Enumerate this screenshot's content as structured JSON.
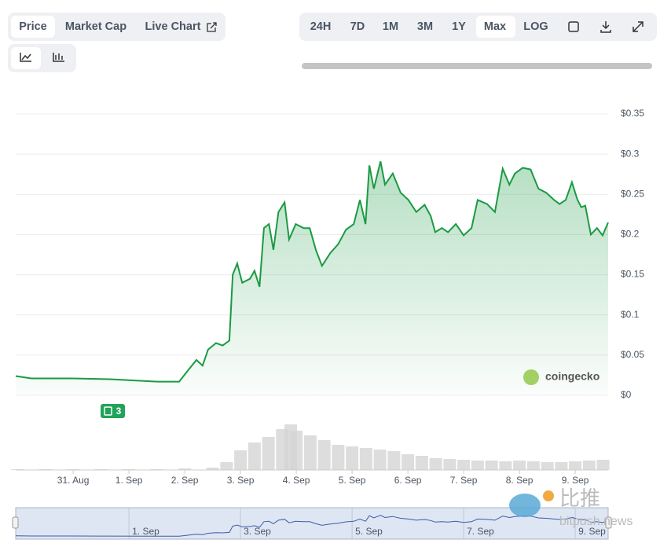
{
  "toolbar": {
    "left": [
      "Price",
      "Market Cap",
      "Live Chart"
    ],
    "right": [
      "24H",
      "7D",
      "1M",
      "3M",
      "1Y",
      "Max",
      "LOG"
    ],
    "active_left": "Price",
    "active_right": "Max"
  },
  "chart_data": {
    "type": "line",
    "color": "#1a9a43",
    "grid": true,
    "x": [
      -1.03,
      -0.75,
      0,
      0.66,
      1.51,
      1.9,
      2.07,
      2.21,
      2.32,
      2.42,
      2.56,
      2.68,
      2.8,
      2.86,
      2.94,
      3.03,
      3.17,
      3.25,
      3.34,
      3.42,
      3.51,
      3.59,
      3.68,
      3.79,
      3.87,
      3.99,
      4.13,
      4.24,
      4.35,
      4.46,
      4.61,
      4.75,
      4.89,
      5.03,
      5.14,
      5.24,
      5.31,
      5.39,
      5.51,
      5.59,
      5.73,
      5.87,
      6.01,
      6.15,
      6.3,
      6.41,
      6.49,
      6.61,
      6.72,
      6.86,
      7.0,
      7.14,
      7.25,
      7.42,
      7.56,
      7.7,
      7.82,
      7.92,
      8.06,
      8.2,
      8.34,
      8.48,
      8.62,
      8.72,
      8.83,
      8.94,
      9.04,
      9.11,
      9.18,
      9.28,
      9.39,
      9.49,
      9.59
    ],
    "values": [
      0.024,
      0.021,
      0.021,
      0.02,
      0.017,
      0.017,
      0.032,
      0.044,
      0.037,
      0.057,
      0.065,
      0.062,
      0.068,
      0.15,
      0.164,
      0.14,
      0.145,
      0.155,
      0.135,
      0.208,
      0.213,
      0.181,
      0.228,
      0.24,
      0.194,
      0.213,
      0.208,
      0.208,
      0.181,
      0.161,
      0.177,
      0.188,
      0.206,
      0.213,
      0.243,
      0.213,
      0.286,
      0.257,
      0.291,
      0.262,
      0.276,
      0.252,
      0.243,
      0.228,
      0.237,
      0.223,
      0.203,
      0.208,
      0.203,
      0.213,
      0.199,
      0.208,
      0.243,
      0.238,
      0.228,
      0.282,
      0.262,
      0.276,
      0.283,
      0.281,
      0.257,
      0.252,
      0.243,
      0.238,
      0.243,
      0.265,
      0.243,
      0.234,
      0.236,
      0.2,
      0.208,
      0.199,
      0.215
    ],
    "xlim": [
      -1.03,
      9.59
    ],
    "xticks": [
      {
        "value": 0,
        "label": "31. Aug"
      },
      {
        "value": 1,
        "label": "1. Sep"
      },
      {
        "value": 2,
        "label": "2. Sep"
      },
      {
        "value": 3,
        "label": "3. Sep"
      },
      {
        "value": 4,
        "label": "4. Sep"
      },
      {
        "value": 5,
        "label": "5. Sep"
      },
      {
        "value": 6,
        "label": "6. Sep"
      },
      {
        "value": 7,
        "label": "7. Sep"
      },
      {
        "value": 8,
        "label": "8. Sep"
      },
      {
        "value": 9,
        "label": "9. Sep"
      }
    ],
    "ylim": [
      0,
      0.35
    ],
    "yticks": [
      {
        "value": 0,
        "label": "$0"
      },
      {
        "value": 0.05,
        "label": "$0.05"
      },
      {
        "value": 0.1,
        "label": "$0.1"
      },
      {
        "value": 0.15,
        "label": "$0.15"
      },
      {
        "value": 0.2,
        "label": "$0.2"
      },
      {
        "value": 0.25,
        "label": "$0.25"
      },
      {
        "value": 0.3,
        "label": "$0.3"
      },
      {
        "value": 0.35,
        "label": "$0.35"
      }
    ],
    "volume": {
      "color": "#d4d4d4",
      "ylim": [
        0,
        100
      ],
      "x": [
        -1.0,
        -0.5,
        0,
        0.5,
        1,
        1.5,
        2,
        2.5,
        2.75,
        3.0,
        3.25,
        3.5,
        3.75,
        3.9,
        4.0,
        4.25,
        4.5,
        4.75,
        5.0,
        5.25,
        5.5,
        5.75,
        6.0,
        6.25,
        6.5,
        6.75,
        7.0,
        7.25,
        7.5,
        7.75,
        8.0,
        8.25,
        8.5,
        8.75,
        9.0,
        9.25,
        9.5
      ],
      "values": [
        1,
        1,
        1,
        1,
        1,
        1,
        2,
        3,
        10,
        25,
        35,
        42,
        52,
        58,
        50,
        44,
        38,
        32,
        30,
        28,
        26,
        24,
        20,
        18,
        15,
        14,
        13,
        12,
        12,
        11,
        12,
        11,
        10,
        10,
        11,
        12,
        13
      ]
    },
    "news_badge": "3",
    "watermark": "coingecko"
  },
  "site_watermark": {
    "cn": "比推",
    "en": "bitpush.news"
  }
}
